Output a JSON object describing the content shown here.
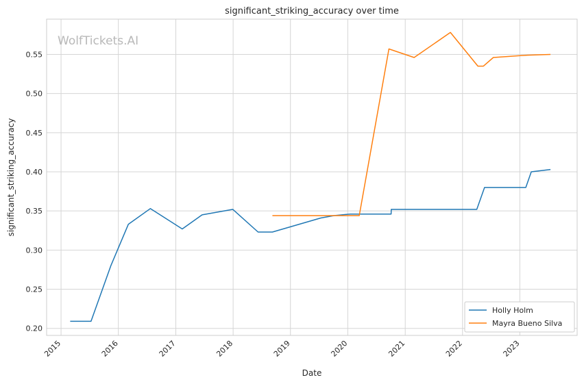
{
  "chart_data": {
    "type": "line",
    "title": "significant_striking_accuracy over time",
    "xlabel": "Date",
    "ylabel": "significant_striking_accuracy",
    "watermark": "WolfTickets.AI",
    "x_ticks": [
      "2015",
      "2016",
      "2017",
      "2018",
      "2019",
      "2020",
      "2021",
      "2022",
      "2023"
    ],
    "y_ticks": [
      "0.20",
      "0.25",
      "0.30",
      "0.35",
      "0.40",
      "0.45",
      "0.50",
      "0.55"
    ],
    "xlim": [
      "2014-10-01",
      "2024-01-01"
    ],
    "ylim": [
      0.191,
      0.595
    ],
    "grid": true,
    "legend_position": "lower-right",
    "series": [
      {
        "name": "Holly Holm",
        "color": "#1f77b4",
        "points": [
          [
            "2015-02-28",
            0.209
          ],
          [
            "2015-07-11",
            0.209
          ],
          [
            "2015-11-14",
            0.28
          ],
          [
            "2016-03-05",
            0.333
          ],
          [
            "2016-07-23",
            0.353
          ],
          [
            "2017-02-11",
            0.327
          ],
          [
            "2017-06-17",
            0.345
          ],
          [
            "2017-12-30",
            0.352
          ],
          [
            "2018-06-09",
            0.323
          ],
          [
            "2018-09-08",
            0.323
          ],
          [
            "2019-07-13",
            0.341
          ],
          [
            "2019-10-05",
            0.344
          ],
          [
            "2020-01-18",
            0.346
          ],
          [
            "2020-10-03",
            0.346
          ],
          [
            "2020-10-04",
            0.352
          ],
          [
            "2022-04-02",
            0.352
          ],
          [
            "2022-05-21",
            0.38
          ],
          [
            "2023-02-08",
            0.38
          ],
          [
            "2023-03-15",
            0.4
          ],
          [
            "2023-07-15",
            0.403
          ]
        ]
      },
      {
        "name": "Mayra Bueno Silva",
        "color": "#ff7f0e",
        "points": [
          [
            "2018-09-08",
            0.344
          ],
          [
            "2019-09-01",
            0.344
          ],
          [
            "2020-03-14",
            0.344
          ],
          [
            "2020-09-19",
            0.557
          ],
          [
            "2021-02-27",
            0.546
          ],
          [
            "2021-10-16",
            0.578
          ],
          [
            "2022-04-09",
            0.535
          ],
          [
            "2022-05-14",
            0.535
          ],
          [
            "2022-07-16",
            0.546
          ],
          [
            "2023-02-18",
            0.549
          ],
          [
            "2023-07-15",
            0.55
          ]
        ]
      }
    ]
  }
}
